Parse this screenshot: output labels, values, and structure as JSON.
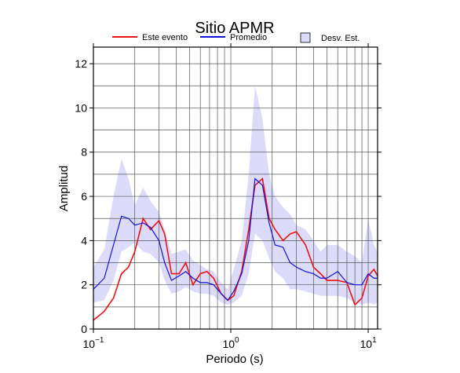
{
  "chart_data": {
    "type": "line",
    "title": "Sitio APMR",
    "xlabel": "Periodo (s)",
    "ylabel": "Amplitud",
    "xscale": "log",
    "grid": true,
    "legend": "top",
    "xlim": [
      0.1,
      11.7
    ],
    "ylim": [
      0,
      12.75
    ],
    "xticks": [
      {
        "value": 0.1,
        "label": "10",
        "exponent": "−1"
      },
      {
        "value": 1,
        "label": "10",
        "exponent": "0"
      },
      {
        "value": 10,
        "label": "10",
        "exponent": "1"
      }
    ],
    "xminor": [
      0.2,
      0.3,
      0.4,
      0.5,
      0.6,
      0.7,
      0.8,
      0.9,
      2,
      3,
      4,
      5,
      6,
      7,
      8,
      9
    ],
    "yticks": [
      0,
      2,
      4,
      6,
      8,
      10,
      12
    ],
    "yminor": [
      1,
      3,
      5,
      7,
      9,
      11
    ],
    "x": [
      0.1,
      0.12,
      0.14,
      0.16,
      0.18,
      0.2,
      0.23,
      0.26,
      0.3,
      0.33,
      0.37,
      0.42,
      0.47,
      0.53,
      0.6,
      0.67,
      0.75,
      0.85,
      0.95,
      1.05,
      1.2,
      1.35,
      1.5,
      1.7,
      1.9,
      2.1,
      2.4,
      2.7,
      3,
      3.5,
      4,
      4.5,
      5,
      6,
      7,
      8,
      9,
      10,
      11,
      11.7
    ],
    "series": [
      {
        "name": "Este evento",
        "color": "#ee1111",
        "kind": "line",
        "values": [
          0.4,
          0.8,
          1.4,
          2.5,
          2.8,
          3.5,
          5.0,
          4.5,
          4.9,
          4.3,
          2.5,
          2.5,
          3.0,
          2.0,
          2.5,
          2.6,
          2.3,
          1.6,
          1.3,
          1.5,
          2.6,
          4.5,
          6.5,
          6.8,
          5.0,
          4.5,
          4.0,
          4.3,
          4.4,
          3.8,
          2.8,
          2.5,
          2.2,
          2.2,
          2.1,
          1.1,
          1.4,
          2.4,
          2.7,
          2.4
        ]
      },
      {
        "name": "Promedio",
        "color": "#1111dd",
        "kind": "line",
        "values": [
          1.8,
          2.3,
          3.8,
          5.1,
          5.0,
          4.7,
          4.8,
          4.6,
          4.0,
          3.0,
          2.2,
          2.4,
          2.6,
          2.3,
          2.1,
          2.1,
          2.0,
          1.6,
          1.3,
          1.7,
          2.5,
          4.0,
          6.8,
          6.5,
          4.8,
          3.8,
          3.7,
          3.0,
          2.8,
          2.6,
          2.5,
          2.3,
          2.3,
          2.6,
          2.1,
          2.0,
          2.0,
          2.5,
          2.3,
          2.3
        ]
      },
      {
        "name": "Desv. Est.",
        "color": "#dcdcfa",
        "kind": "band",
        "upper": [
          2.8,
          3.6,
          6.0,
          7.7,
          6.8,
          5.6,
          6.4,
          5.8,
          5.3,
          4.5,
          3.4,
          3.5,
          3.6,
          3.1,
          2.9,
          2.7,
          2.6,
          2.1,
          1.8,
          2.7,
          4.0,
          7.0,
          11.0,
          9.5,
          7.0,
          6.0,
          5.5,
          5.2,
          4.7,
          4.5,
          4.0,
          3.5,
          3.8,
          3.8,
          3.5,
          3.3,
          3.0,
          5.0,
          3.8,
          3.5
        ],
        "lower": [
          1.2,
          1.3,
          2.2,
          3.5,
          3.7,
          3.9,
          3.5,
          3.4,
          3.0,
          2.2,
          1.6,
          1.7,
          1.9,
          1.7,
          1.6,
          1.6,
          1.5,
          1.2,
          1.1,
          1.2,
          1.5,
          2.5,
          4.3,
          4.0,
          3.2,
          2.6,
          2.3,
          1.8,
          1.8,
          1.7,
          1.6,
          1.5,
          1.5,
          1.5,
          1.4,
          1.2,
          1.1,
          1.2,
          1.1,
          1.2
        ]
      }
    ]
  }
}
